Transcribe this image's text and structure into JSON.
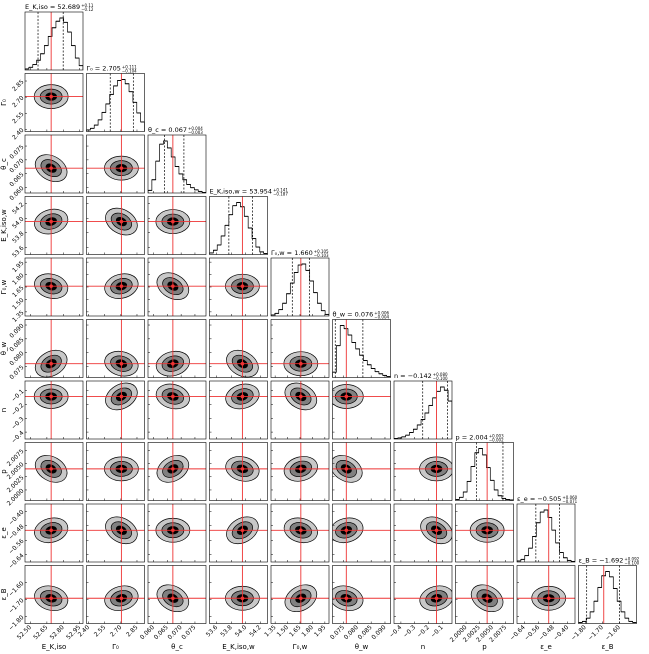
{
  "chart_data": {
    "type": "corner",
    "parameters": [
      {
        "label": "E_K,iso",
        "title": "E_K,iso = 52.689",
        "err_plus": "+0.11",
        "err_minus": "−0.12",
        "median": 52.689,
        "q16": 52.569,
        "q84": 52.799,
        "lim": [
          52.45,
          52.98
        ],
        "ticks": [
          {
            "value": 52.5,
            "label": "52.50"
          },
          52.65,
          {
            "value": 52.8,
            "label": "52.80"
          },
          52.95
        ],
        "hist": [
          2,
          5,
          10,
          18,
          30,
          45,
          62,
          78,
          90,
          96,
          88,
          70,
          45,
          22,
          8
        ]
      },
      {
        "label": "Γ₀",
        "title": "Γ₀ = 2.705",
        "err_plus": "+0.111",
        "err_minus": "−0.104",
        "median": 2.705,
        "q16": 2.601,
        "q84": 2.816,
        "lim": [
          2.38,
          2.92
        ],
        "ticks": [
          {
            "value": 2.4,
            "label": "2.40"
          },
          2.55,
          {
            "value": 2.7,
            "label": "2.70"
          },
          2.85
        ],
        "hist": [
          3,
          6,
          12,
          22,
          36,
          52,
          70,
          86,
          96,
          98,
          90,
          75,
          55,
          35,
          18
        ]
      },
      {
        "label": "θ_c",
        "title": "θ_c = 0.067",
        "err_plus": "+0.004",
        "err_minus": "−0.003",
        "median": 0.067,
        "q16": 0.064,
        "q84": 0.071,
        "lim": [
          0.058,
          0.079
        ],
        "ticks": [
          {
            "value": 0.06,
            "label": "0.060"
          },
          0.065,
          {
            "value": 0.07,
            "label": "0.070"
          },
          0.075
        ],
        "hist": [
          5,
          25,
          60,
          92,
          98,
          85,
          68,
          50,
          36,
          25,
          16,
          10,
          6,
          3,
          1
        ]
      },
      {
        "label": "E_K,iso,w",
        "title": "E_K,iso,w = 53.954",
        "err_plus": "+0.141",
        "err_minus": "−0.187",
        "median": 53.954,
        "q16": 53.767,
        "q84": 54.095,
        "lim": [
          53.5,
          54.3
        ],
        "ticks": [
          53.6,
          53.8,
          {
            "value": 54,
            "label": "54.0"
          },
          54.2
        ],
        "hist": [
          3,
          8,
          18,
          35,
          55,
          75,
          92,
          98,
          90,
          72,
          50,
          30,
          14,
          5,
          2
        ]
      },
      {
        "label": "Γ₀,w",
        "title": "Γ₀,w = 1.660",
        "err_plus": "+0.105",
        "err_minus": "−0.103",
        "median": 1.66,
        "q16": 1.557,
        "q84": 1.765,
        "lim": [
          1.3,
          2.0
        ],
        "ticks": [
          1.35,
          {
            "value": 1.5,
            "label": "1.50"
          },
          1.65,
          {
            "value": 1.8,
            "label": "1.80"
          },
          1.95
        ],
        "hist": [
          2,
          5,
          12,
          24,
          42,
          62,
          82,
          96,
          98,
          86,
          66,
          44,
          24,
          10,
          3
        ]
      },
      {
        "label": "θ_w",
        "title": "θ_w = 0.076",
        "err_plus": "+0.006",
        "err_minus": "−0.004",
        "median": 0.076,
        "q16": 0.072,
        "q84": 0.082,
        "lim": [
          0.071,
          0.092
        ],
        "ticks": [
          0.075,
          {
            "value": 0.08,
            "label": "0.080"
          },
          0.085,
          {
            "value": 0.09,
            "label": "0.090"
          }
        ],
        "hist": [
          10,
          60,
          98,
          92,
          80,
          66,
          54,
          42,
          32,
          24,
          17,
          11,
          7,
          4,
          2
        ]
      },
      {
        "label": "n",
        "title": "n = −0.142",
        "err_plus": "+0.080",
        "err_minus": "−0.100",
        "median": -0.142,
        "q16": -0.242,
        "q84": -0.062,
        "lim": [
          -0.45,
          -0.03
        ],
        "ticks": [
          {
            "value": -0.4,
            "label": "−0.4"
          },
          {
            "value": -0.3,
            "label": "−0.3"
          },
          {
            "value": -0.2,
            "label": "−0.2"
          },
          {
            "value": -0.1,
            "label": "−0.1"
          }
        ],
        "hist": [
          1,
          2,
          4,
          7,
          12,
          18,
          26,
          36,
          48,
          62,
          76,
          88,
          96,
          90,
          70
        ]
      },
      {
        "label": "p",
        "title": "p = 2.004",
        "err_plus": "+0.003",
        "err_minus": "−0.002",
        "median": 2.004,
        "q16": 2.002,
        "q84": 2.007,
        "lim": [
          1.998,
          2.009
        ],
        "ticks": [
          {
            "value": 2,
            "label": "2.0000"
          },
          2.0025,
          {
            "value": 2.005,
            "label": "2.0050"
          },
          2.0075
        ],
        "hist": [
          2,
          6,
          16,
          36,
          64,
          90,
          98,
          86,
          62,
          38,
          20,
          9,
          4,
          2,
          1
        ]
      },
      {
        "label": "ε_e",
        "title": "ε_e = −0.505",
        "err_plus": "+0.060",
        "err_minus": "−0.071",
        "median": -0.505,
        "q16": -0.576,
        "q84": -0.445,
        "lim": [
          -0.68,
          -0.36
        ],
        "ticks": [
          {
            "value": -0.64,
            "label": "−0.64"
          },
          {
            "value": -0.56,
            "label": "−0.56"
          },
          {
            "value": -0.48,
            "label": "−0.48"
          },
          {
            "value": -0.4,
            "label": "−0.40"
          }
        ],
        "hist": [
          2,
          5,
          12,
          26,
          48,
          74,
          94,
          98,
          84,
          60,
          36,
          18,
          8,
          3,
          1
        ]
      },
      {
        "label": "ε_B",
        "title": "ε_B = −1.692",
        "err_plus": "+0.092",
        "err_minus": "−0.100",
        "median": -1.692,
        "q16": -1.792,
        "q84": -1.6,
        "lim": [
          -1.84,
          -1.5
        ],
        "ticks": [
          {
            "value": -1.8,
            "label": "−1.80"
          },
          {
            "value": -1.7,
            "label": "−1.70"
          },
          {
            "value": -1.6,
            "label": "−1.60"
          }
        ],
        "hist": [
          2,
          4,
          10,
          22,
          42,
          68,
          90,
          98,
          88,
          66,
          42,
          22,
          10,
          4,
          2
        ]
      }
    ]
  }
}
